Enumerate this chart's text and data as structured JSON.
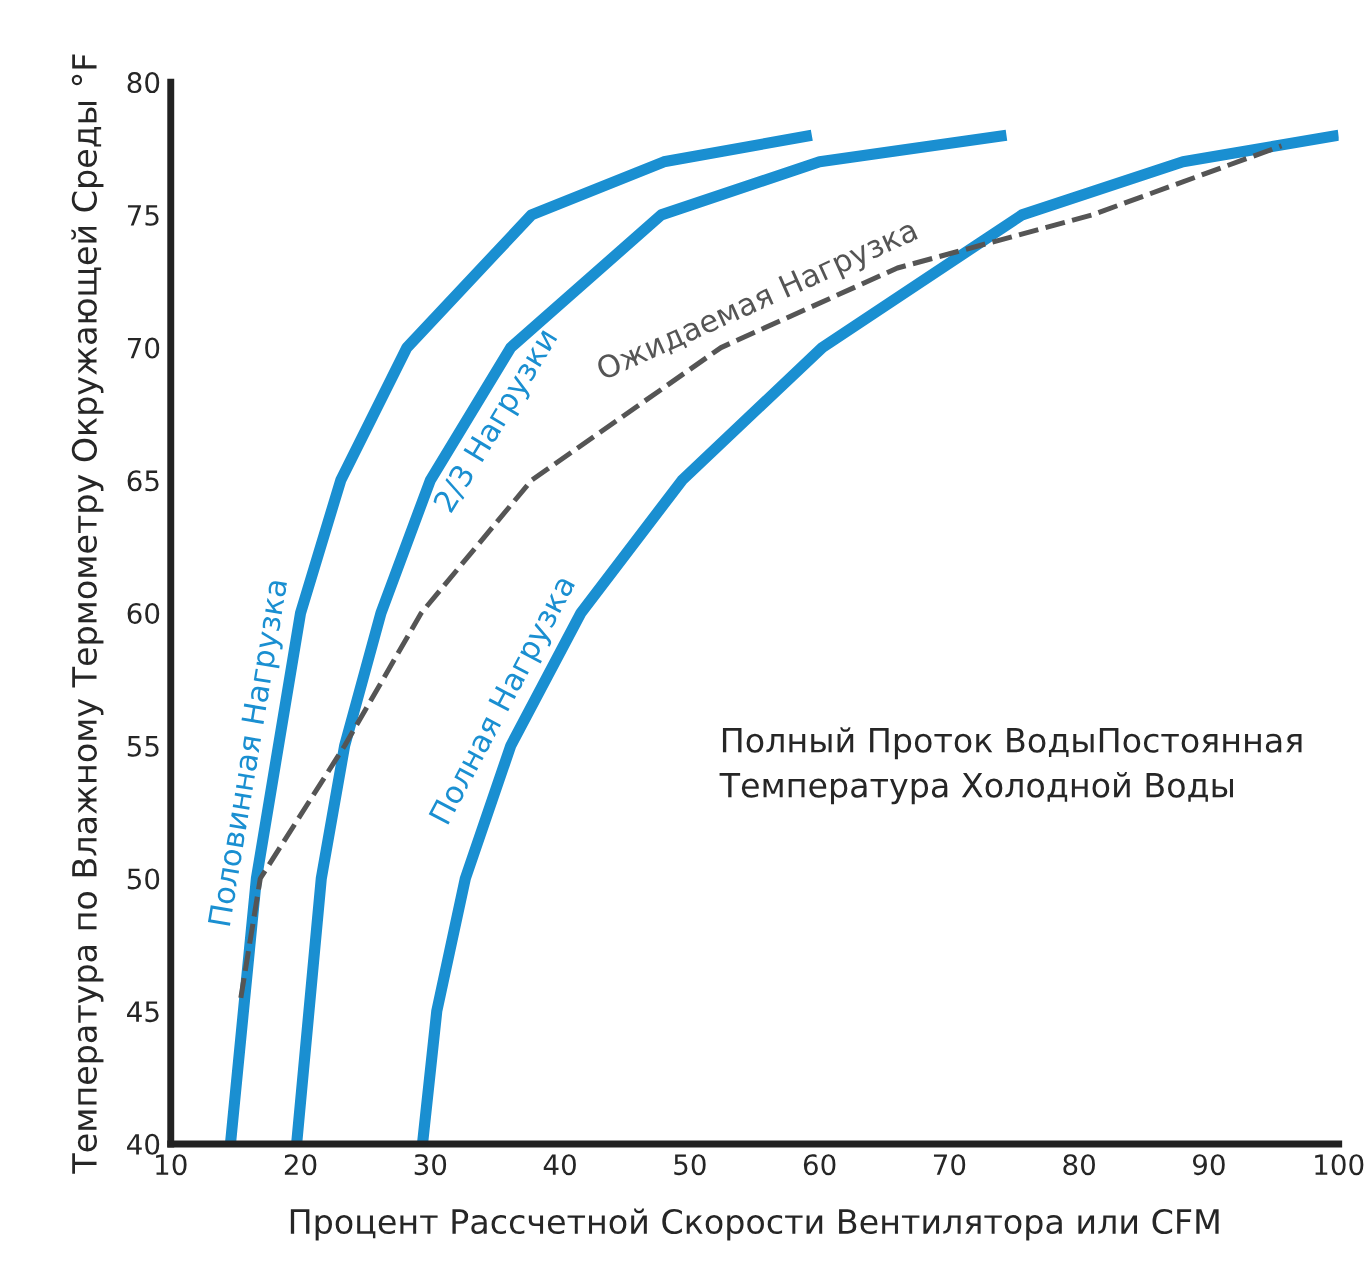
{
  "chart_data": {
    "type": "line",
    "xlabel": "Процент Рассчетной Скорости Вентилятора или CFM",
    "ylabel": "Температура по Влажному Термометру Окружающей Среды °F",
    "xlim": [
      10,
      100
    ],
    "ylim": [
      40,
      80
    ],
    "xticks": [
      10,
      20,
      30,
      40,
      50,
      60,
      70,
      80,
      90,
      100
    ],
    "yticks": [
      40,
      45,
      50,
      55,
      60,
      65,
      70,
      75,
      80
    ],
    "grid": false,
    "legend": false,
    "marker": "none",
    "series": [
      {
        "name": "Половинная Нагрузка",
        "color": "#1a8fd1",
        "line_style": "solid",
        "x": [
          14.6,
          16.6,
          20,
          23.1,
          28.2,
          37.8,
          48,
          59.4
        ],
        "values": [
          40,
          50,
          60,
          65,
          70,
          75,
          77,
          78
        ]
      },
      {
        "name": "2/3 Нагрузки",
        "color": "#1a8fd1",
        "line_style": "solid",
        "x": [
          19.7,
          21.6,
          23.4,
          26.2,
          30,
          36.2,
          47.8,
          60,
          74.4
        ],
        "values": [
          40,
          50,
          55,
          60,
          65,
          70,
          75,
          77,
          78
        ]
      },
      {
        "name": "Ожидаемая Нагрузка",
        "color": "#555555",
        "line_style": "dashed",
        "x": [
          15.4,
          16.9,
          23.4,
          29.3,
          37.8,
          52.4,
          66,
          81,
          95.6
        ],
        "values": [
          45.5,
          50,
          55,
          60,
          65,
          70,
          73,
          75,
          77.6
        ]
      },
      {
        "name": "Полная Нагрузка",
        "color": "#1a8fd1",
        "line_style": "solid",
        "x": [
          29.4,
          30.5,
          32.7,
          36.2,
          41.6,
          49.4,
          60.2,
          75.6,
          88,
          100
        ],
        "values": [
          40,
          45,
          50,
          55,
          60,
          65,
          70,
          75,
          77,
          78
        ]
      }
    ],
    "annotations": [
      "Полный Проток ВодыПостоянная\nТемпература Холодной Воды"
    ]
  }
}
